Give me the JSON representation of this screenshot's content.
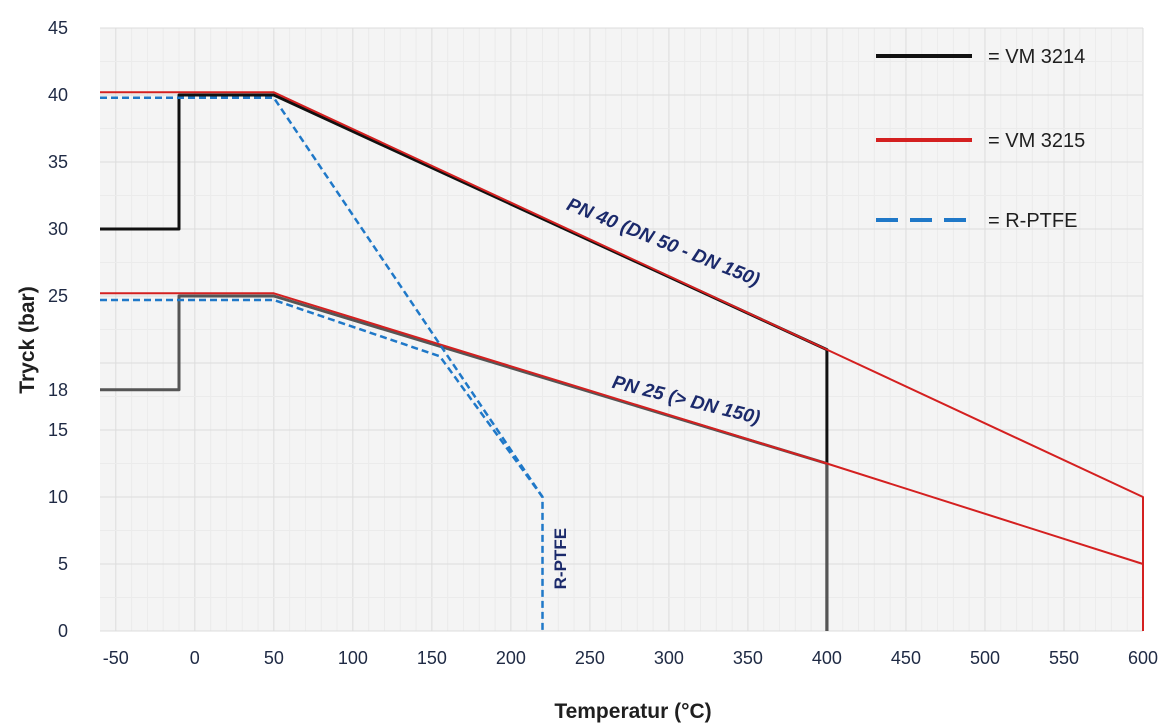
{
  "chart_data": {
    "type": "line",
    "title": "",
    "xlabel": "Temperatur (°C)",
    "ylabel": "Tryck (bar)",
    "xlim": [
      -60,
      600
    ],
    "ylim": [
      0,
      45
    ],
    "x_ticks": [
      -50,
      0,
      50,
      100,
      150,
      200,
      250,
      300,
      350,
      400,
      450,
      500,
      550,
      600
    ],
    "y_ticks": [
      0,
      5,
      10,
      15,
      18,
      25,
      30,
      35,
      40,
      45
    ],
    "grid": true,
    "legend_position": "top-right",
    "legend": [
      {
        "label": "= VM 3214",
        "color": "#111111",
        "style": "solid"
      },
      {
        "label": "= VM 3215",
        "color": "#d42020",
        "style": "solid"
      },
      {
        "label": "= R-PTFE",
        "color": "#1f78c8",
        "style": "dashed"
      }
    ],
    "series": [
      {
        "name": "VM 3214",
        "group": "PN 40",
        "color": "#111111",
        "style": "solid",
        "width": 3,
        "points": [
          [
            -60,
            30
          ],
          [
            -10,
            30
          ],
          [
            -10,
            40
          ],
          [
            50,
            40
          ],
          [
            400,
            21
          ],
          [
            400,
            0
          ]
        ]
      },
      {
        "name": "VM 3214",
        "group": "PN 25",
        "color": "#555555",
        "style": "solid",
        "width": 3,
        "points": [
          [
            -60,
            18
          ],
          [
            -10,
            18
          ],
          [
            -10,
            25
          ],
          [
            50,
            25
          ],
          [
            400,
            12.5
          ],
          [
            400,
            0
          ]
        ]
      },
      {
        "name": "VM 3215",
        "group": "PN 40",
        "color": "#d42020",
        "style": "solid",
        "width": 2,
        "points": [
          [
            -60,
            40.2
          ],
          [
            50,
            40.2
          ],
          [
            400,
            21
          ],
          [
            600,
            10
          ],
          [
            600,
            0
          ]
        ]
      },
      {
        "name": "VM 3215",
        "group": "PN 25",
        "color": "#d42020",
        "style": "solid",
        "width": 2,
        "points": [
          [
            -60,
            25.2
          ],
          [
            50,
            25.2
          ],
          [
            400,
            12.5
          ],
          [
            600,
            5
          ]
        ]
      },
      {
        "name": "R-PTFE",
        "group": "PN 40",
        "color": "#1f78c8",
        "style": "dashed",
        "width": 2.5,
        "points": [
          [
            -60,
            39.8
          ],
          [
            50,
            39.8
          ],
          [
            220,
            10
          ],
          [
            220,
            0
          ]
        ]
      },
      {
        "name": "R-PTFE",
        "group": "PN 25",
        "color": "#1f78c8",
        "style": "dashed",
        "width": 2.5,
        "points": [
          [
            -60,
            24.7
          ],
          [
            50,
            24.7
          ],
          [
            155,
            20.5
          ],
          [
            220,
            10
          ]
        ]
      }
    ],
    "annotations": [
      {
        "text": "PN 40 (DN 50 - DN 150)",
        "x": 295,
        "y": 28.6,
        "angle_deg": 22
      },
      {
        "text": "PN 25 (> DN 150)",
        "x": 310,
        "y": 16.8,
        "angle_deg": 14
      },
      {
        "text": "R-PTFE",
        "x": 235,
        "y": 5.4,
        "angle_deg": -90
      }
    ]
  }
}
